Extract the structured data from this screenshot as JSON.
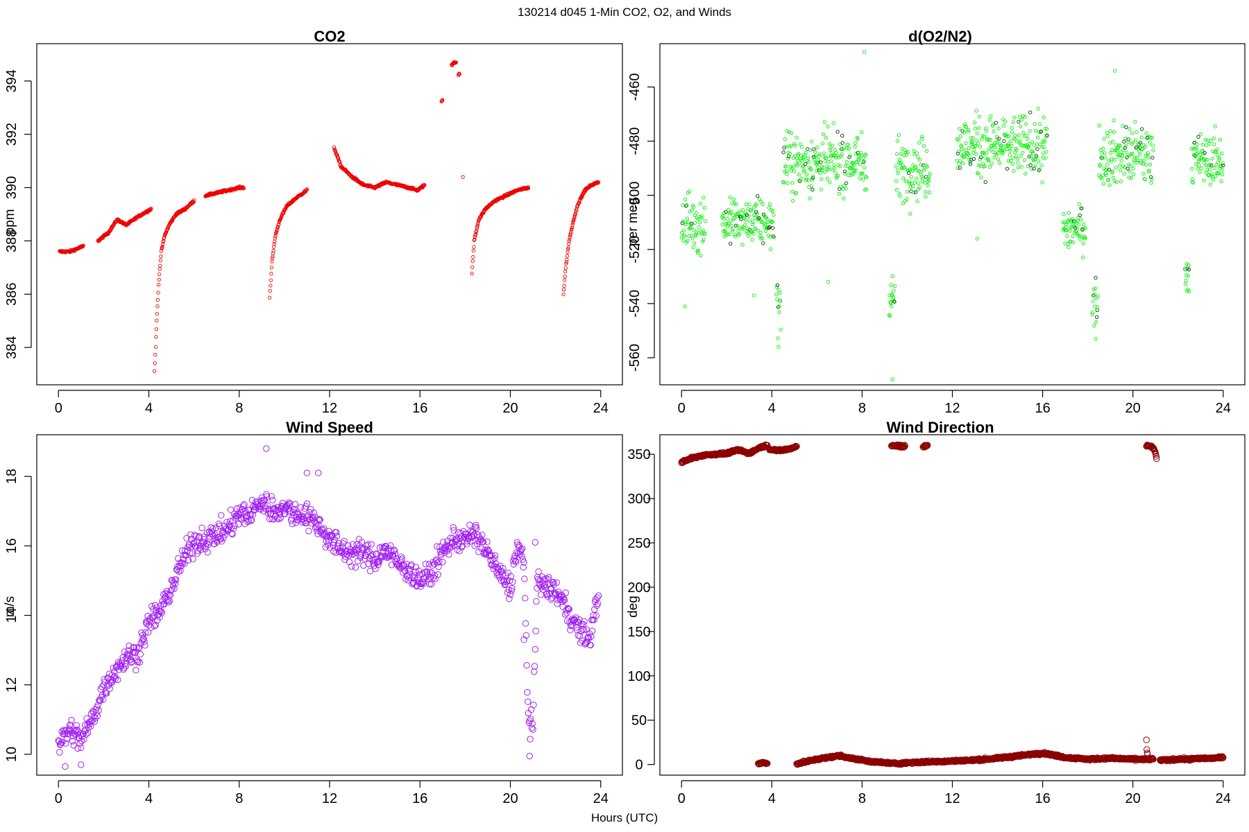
{
  "figure": {
    "title": "130214   d045   1-Min CO2, O2, and Winds",
    "xlabel": "Hours (UTC)"
  },
  "chart_data": [
    {
      "type": "scatter",
      "title": "CO2",
      "xlabel": "",
      "ylabel": "ppm",
      "xlim": [
        -0.96,
        24.96
      ],
      "ylim": [
        382.6,
        395.4
      ],
      "xticks": [
        0,
        4,
        8,
        12,
        16,
        20,
        24
      ],
      "yticks": [
        384,
        386,
        388,
        390,
        392,
        394
      ],
      "ytick_rotation": "vertical",
      "color": "#ee0000",
      "marker": "small-open-circle",
      "grid": false,
      "segments": [
        {
          "x": [
            0.05,
            0.5,
            1.1
          ],
          "y": [
            387.6,
            387.6,
            387.8
          ]
        },
        {
          "x": [
            1.75,
            2.2,
            2.6,
            3.0,
            3.5,
            4.1
          ],
          "y": [
            388.0,
            388.3,
            388.8,
            388.6,
            388.9,
            389.2
          ]
        },
        {
          "x": [
            4.25,
            4.35,
            4.45,
            4.55,
            4.7,
            4.9,
            5.2,
            5.6,
            6.0
          ],
          "y": [
            383.1,
            385.0,
            386.6,
            387.6,
            388.2,
            388.6,
            389.0,
            389.2,
            389.5
          ]
        },
        {
          "x": [
            6.5,
            7.0,
            7.5,
            8.0,
            8.2
          ],
          "y": [
            389.7,
            389.8,
            389.9,
            390.0,
            390.0
          ]
        },
        {
          "x": [
            9.35,
            9.45,
            9.6,
            9.8,
            10.1,
            10.5,
            11.0
          ],
          "y": [
            385.9,
            387.2,
            388.2,
            388.8,
            389.3,
            389.6,
            389.9
          ]
        },
        {
          "x": [
            12.2,
            12.5,
            13.0,
            13.5,
            14.0,
            14.5,
            15.0,
            15.5,
            15.9,
            16.2
          ],
          "y": [
            391.5,
            390.8,
            390.4,
            390.1,
            390.0,
            390.2,
            390.1,
            390.0,
            389.9,
            390.1
          ]
        },
        {
          "x": [
            16.95,
            17.0
          ],
          "y": [
            393.2,
            393.3
          ]
        },
        {
          "x": [
            17.4,
            17.5,
            17.6
          ],
          "y": [
            394.6,
            394.7,
            394.7
          ]
        },
        {
          "x": [
            17.7,
            17.75
          ],
          "y": [
            394.2,
            394.3
          ]
        },
        {
          "x": [
            17.9
          ],
          "y": [
            390.4
          ]
        },
        {
          "x": [
            18.3,
            18.4,
            18.6,
            18.9,
            19.3,
            19.8,
            20.3,
            20.8
          ],
          "y": [
            386.8,
            388.0,
            388.8,
            389.2,
            389.5,
            389.7,
            389.9,
            390.0
          ]
        },
        {
          "x": [
            22.35,
            22.45,
            22.6,
            22.8,
            23.0,
            23.3,
            23.6,
            23.9
          ],
          "y": [
            386.0,
            387.0,
            388.0,
            388.8,
            389.4,
            389.9,
            390.1,
            390.2
          ]
        }
      ]
    },
    {
      "type": "scatter",
      "title": "d(O2/N2)",
      "xlabel": "",
      "ylabel": "per meg",
      "xlim": [
        -0.96,
        24.96
      ],
      "ylim": [
        -570,
        -444
      ],
      "xticks": [
        0,
        4,
        8,
        12,
        16,
        20,
        24
      ],
      "yticks": [
        -560,
        -540,
        -520,
        -500,
        -480,
        -460
      ],
      "ytick_rotation": "vertical",
      "color": "#00ee00",
      "accent_color": "#003300",
      "marker": "small-open-circle",
      "grid": false,
      "segments": [
        {
          "x_range": [
            0.0,
            1.05
          ],
          "center": -510,
          "spread": 11,
          "extremes": [
            [
              0.15,
              -541
            ]
          ]
        },
        {
          "x_range": [
            1.8,
            4.1
          ],
          "center": -510,
          "spread": 8,
          "extremes": [
            [
              3.2,
              -537
            ]
          ]
        },
        {
          "x_range": [
            4.2,
            4.4
          ],
          "center": -540,
          "spread": 10,
          "extremes": [
            [
              4.3,
              -556
            ]
          ]
        },
        {
          "x_range": [
            4.5,
            8.2
          ],
          "center": -488,
          "spread": 11,
          "extremes": [
            [
              6.5,
              -532
            ],
            [
              8.1,
              -447
            ]
          ]
        },
        {
          "x_range": [
            9.2,
            9.45
          ],
          "center": -537,
          "spread": 8,
          "extremes": [
            [
              9.35,
              -568
            ]
          ]
        },
        {
          "x_range": [
            9.5,
            11.0
          ],
          "center": -490,
          "spread": 11,
          "extremes": []
        },
        {
          "x_range": [
            12.2,
            16.2
          ],
          "center": -482,
          "spread": 11,
          "extremes": [
            [
              13.1,
              -516
            ]
          ]
        },
        {
          "x_range": [
            16.9,
            17.9
          ],
          "center": -512,
          "spread": 8,
          "extremes": []
        },
        {
          "x_range": [
            18.2,
            18.45
          ],
          "center": -540,
          "spread": 8,
          "extremes": [
            [
              18.35,
              -553
            ]
          ]
        },
        {
          "x_range": [
            18.5,
            20.9
          ],
          "center": -485,
          "spread": 11,
          "extremes": [
            [
              19.2,
              -454
            ]
          ]
        },
        {
          "x_range": [
            22.3,
            22.5
          ],
          "center": -528,
          "spread": 8,
          "extremes": []
        },
        {
          "x_range": [
            22.6,
            24.0
          ],
          "center": -487,
          "spread": 9,
          "extremes": []
        }
      ]
    },
    {
      "type": "scatter",
      "title": "Wind Speed",
      "xlabel": "",
      "ylabel": "m/s",
      "xlim": [
        -0.96,
        24.96
      ],
      "ylim": [
        9.4,
        19.2
      ],
      "xticks": [
        0,
        4,
        8,
        12,
        16,
        20,
        24
      ],
      "yticks": [
        10,
        12,
        14,
        16,
        18
      ],
      "ytick_rotation": "vertical",
      "color": "#a020f0",
      "marker": "open-circle",
      "grid": false,
      "x": [
        0.0,
        0.5,
        1.0,
        1.5,
        2.0,
        2.5,
        3.0,
        3.5,
        4.0,
        4.5,
        5.0,
        5.5,
        6.0,
        6.5,
        7.0,
        7.5,
        8.0,
        8.5,
        9.0,
        9.5,
        10.0,
        10.5,
        11.0,
        11.5,
        12.0,
        12.5,
        13.0,
        13.5,
        14.0,
        14.5,
        15.0,
        15.5,
        16.0,
        16.5,
        17.0,
        17.5,
        18.0,
        18.5,
        19.0,
        19.5,
        20.0,
        20.3,
        20.6,
        20.8,
        21.0,
        21.2,
        21.5,
        22.0,
        22.5,
        23.0,
        23.5,
        23.9
      ],
      "y": [
        10.3,
        10.7,
        10.4,
        11.0,
        11.9,
        12.4,
        12.8,
        12.9,
        13.8,
        14.1,
        14.8,
        15.6,
        16.1,
        16.2,
        16.3,
        16.5,
        16.9,
        16.9,
        17.3,
        17.0,
        17.1,
        16.9,
        16.9,
        16.6,
        16.2,
        15.9,
        15.8,
        15.8,
        15.6,
        15.9,
        15.5,
        15.3,
        15.0,
        15.2,
        15.8,
        16.2,
        16.2,
        16.3,
        15.8,
        15.2,
        14.8,
        16.0,
        15.5,
        11.0,
        10.8,
        15.2,
        14.8,
        14.7,
        14.2,
        13.6,
        13.3,
        14.6
      ],
      "spread": 0.35,
      "extremes": [
        [
          9.2,
          18.8
        ],
        [
          11.0,
          18.1
        ],
        [
          11.5,
          18.1
        ],
        [
          0.3,
          9.65
        ],
        [
          1.0,
          9.7
        ],
        [
          20.85,
          9.95
        ],
        [
          21.1,
          16.1
        ],
        [
          20.6,
          13.3
        ]
      ]
    },
    {
      "type": "scatter",
      "title": "Wind Direction",
      "xlabel": "",
      "ylabel": "deg",
      "xlim": [
        -0.96,
        24.96
      ],
      "ylim": [
        -12,
        372
      ],
      "xticks": [
        0,
        4,
        8,
        12,
        16,
        20,
        24
      ],
      "yticks": [
        0,
        50,
        100,
        150,
        200,
        250,
        300,
        350
      ],
      "ytick_rotation": "horizontal",
      "color": "#8b0000",
      "marker": "open-circle",
      "grid": false,
      "segments": [
        {
          "x": [
            0.0,
            0.5,
            1.0,
            1.5,
            2.0,
            2.5,
            3.0,
            3.5,
            3.8
          ],
          "y": [
            341,
            346,
            349,
            350,
            351,
            355,
            351,
            358,
            360
          ]
        },
        {
          "x": [
            3.9,
            4.3,
            4.8,
            5.1
          ],
          "y": [
            356,
            354,
            356,
            359
          ]
        },
        {
          "x": [
            3.4,
            3.6,
            3.8
          ],
          "y": [
            1,
            2,
            1
          ]
        },
        {
          "x": [
            5.1,
            5.5,
            6.0,
            6.5,
            7.0,
            7.5,
            8.0,
            8.5,
            9.0,
            9.5,
            10.0,
            11.0,
            12.0,
            13.0,
            14.0,
            15.0,
            16.0,
            17.0,
            18.0,
            19.0,
            20.0,
            20.5,
            20.9
          ],
          "y": [
            1,
            3,
            6,
            8,
            10,
            7,
            5,
            3,
            2,
            1,
            2,
            3,
            4,
            5,
            7,
            10,
            13,
            8,
            6,
            7,
            6,
            6,
            6
          ]
        },
        {
          "x": [
            21.2,
            21.5,
            22.0,
            22.5,
            23.0,
            23.5,
            24.0
          ],
          "y": [
            5,
            5,
            6,
            6,
            7,
            7,
            8
          ]
        },
        {
          "x": [
            9.3,
            9.5,
            9.7,
            9.9
          ],
          "y": [
            360,
            360,
            359,
            359
          ]
        },
        {
          "x": [
            10.7,
            10.9
          ],
          "y": [
            359,
            360
          ]
        },
        {
          "x": [
            20.6,
            20.8,
            20.95,
            21.0,
            21.05
          ],
          "y": [
            360,
            359,
            356,
            350,
            346
          ]
        },
        {
          "x": [
            20.6,
            20.6,
            20.65
          ],
          "y": [
            28,
            18,
            12
          ]
        }
      ]
    }
  ]
}
